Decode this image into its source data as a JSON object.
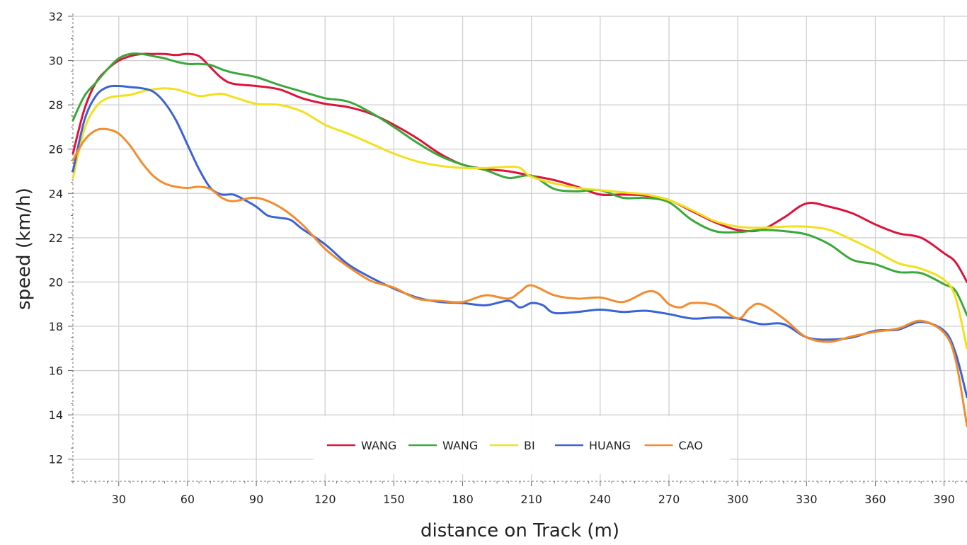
{
  "chart_data": {
    "type": "line",
    "title": "",
    "xlabel": "distance on Track (m)",
    "ylabel": "speed (km/h)",
    "xlim": [
      10,
      400
    ],
    "ylim": [
      11,
      32
    ],
    "x_ticks": [
      30,
      60,
      90,
      120,
      150,
      180,
      210,
      240,
      270,
      300,
      330,
      360,
      390
    ],
    "y_ticks": [
      12,
      14,
      16,
      18,
      20,
      22,
      24,
      26,
      28,
      30,
      32
    ],
    "grid": true,
    "legend_position": "bottom-center",
    "series": [
      {
        "name": "WANG",
        "color": "#dc143c",
        "points": [
          [
            10,
            25.8
          ],
          [
            15,
            27.8
          ],
          [
            20,
            29.0
          ],
          [
            25,
            29.6
          ],
          [
            30,
            30.0
          ],
          [
            35,
            30.2
          ],
          [
            40,
            30.3
          ],
          [
            45,
            30.3
          ],
          [
            50,
            30.3
          ],
          [
            55,
            30.25
          ],
          [
            60,
            30.3
          ],
          [
            65,
            30.2
          ],
          [
            70,
            29.7
          ],
          [
            75,
            29.2
          ],
          [
            80,
            28.95
          ],
          [
            90,
            28.85
          ],
          [
            100,
            28.7
          ],
          [
            110,
            28.3
          ],
          [
            120,
            28.05
          ],
          [
            130,
            27.9
          ],
          [
            140,
            27.6
          ],
          [
            150,
            27.1
          ],
          [
            160,
            26.5
          ],
          [
            170,
            25.8
          ],
          [
            180,
            25.3
          ],
          [
            190,
            25.1
          ],
          [
            200,
            25.0
          ],
          [
            210,
            24.8
          ],
          [
            220,
            24.6
          ],
          [
            230,
            24.3
          ],
          [
            240,
            23.95
          ],
          [
            250,
            23.95
          ],
          [
            260,
            23.9
          ],
          [
            270,
            23.7
          ],
          [
            280,
            23.2
          ],
          [
            290,
            22.7
          ],
          [
            300,
            22.35
          ],
          [
            310,
            22.35
          ],
          [
            320,
            22.9
          ],
          [
            330,
            23.55
          ],
          [
            340,
            23.4
          ],
          [
            350,
            23.1
          ],
          [
            360,
            22.6
          ],
          [
            370,
            22.2
          ],
          [
            380,
            22.0
          ],
          [
            390,
            21.3
          ],
          [
            395,
            20.9
          ],
          [
            400,
            20.0
          ]
        ]
      },
      {
        "name": "WANG",
        "color": "#3aa83a",
        "points": [
          [
            10,
            27.3
          ],
          [
            15,
            28.4
          ],
          [
            20,
            29.0
          ],
          [
            25,
            29.6
          ],
          [
            30,
            30.1
          ],
          [
            35,
            30.3
          ],
          [
            40,
            30.3
          ],
          [
            45,
            30.2
          ],
          [
            50,
            30.1
          ],
          [
            55,
            29.95
          ],
          [
            60,
            29.85
          ],
          [
            65,
            29.85
          ],
          [
            70,
            29.8
          ],
          [
            75,
            29.6
          ],
          [
            80,
            29.45
          ],
          [
            90,
            29.25
          ],
          [
            100,
            28.9
          ],
          [
            110,
            28.6
          ],
          [
            120,
            28.3
          ],
          [
            130,
            28.15
          ],
          [
            140,
            27.65
          ],
          [
            150,
            27.0
          ],
          [
            160,
            26.3
          ],
          [
            170,
            25.7
          ],
          [
            180,
            25.3
          ],
          [
            190,
            25.05
          ],
          [
            200,
            24.7
          ],
          [
            210,
            24.8
          ],
          [
            220,
            24.2
          ],
          [
            230,
            24.1
          ],
          [
            240,
            24.15
          ],
          [
            250,
            23.8
          ],
          [
            260,
            23.8
          ],
          [
            270,
            23.6
          ],
          [
            280,
            22.8
          ],
          [
            290,
            22.3
          ],
          [
            300,
            22.25
          ],
          [
            310,
            22.35
          ],
          [
            320,
            22.3
          ],
          [
            330,
            22.15
          ],
          [
            340,
            21.7
          ],
          [
            350,
            21.0
          ],
          [
            360,
            20.8
          ],
          [
            370,
            20.45
          ],
          [
            380,
            20.4
          ],
          [
            390,
            19.9
          ],
          [
            395,
            19.6
          ],
          [
            400,
            18.5
          ]
        ]
      },
      {
        "name": "BI",
        "color": "#f2e01e",
        "points": [
          [
            10,
            24.7
          ],
          [
            15,
            26.9
          ],
          [
            20,
            27.9
          ],
          [
            25,
            28.3
          ],
          [
            30,
            28.4
          ],
          [
            35,
            28.45
          ],
          [
            40,
            28.6
          ],
          [
            45,
            28.7
          ],
          [
            50,
            28.75
          ],
          [
            55,
            28.7
          ],
          [
            60,
            28.55
          ],
          [
            65,
            28.4
          ],
          [
            70,
            28.45
          ],
          [
            75,
            28.5
          ],
          [
            80,
            28.35
          ],
          [
            90,
            28.05
          ],
          [
            100,
            28.0
          ],
          [
            110,
            27.7
          ],
          [
            120,
            27.1
          ],
          [
            130,
            26.7
          ],
          [
            140,
            26.25
          ],
          [
            150,
            25.8
          ],
          [
            160,
            25.45
          ],
          [
            170,
            25.25
          ],
          [
            180,
            25.15
          ],
          [
            190,
            25.15
          ],
          [
            200,
            25.2
          ],
          [
            205,
            25.15
          ],
          [
            210,
            24.75
          ],
          [
            220,
            24.45
          ],
          [
            230,
            24.25
          ],
          [
            240,
            24.15
          ],
          [
            250,
            24.05
          ],
          [
            260,
            23.95
          ],
          [
            270,
            23.7
          ],
          [
            280,
            23.25
          ],
          [
            290,
            22.75
          ],
          [
            300,
            22.5
          ],
          [
            310,
            22.45
          ],
          [
            320,
            22.5
          ],
          [
            330,
            22.5
          ],
          [
            340,
            22.35
          ],
          [
            350,
            21.9
          ],
          [
            360,
            21.4
          ],
          [
            370,
            20.85
          ],
          [
            380,
            20.6
          ],
          [
            390,
            20.1
          ],
          [
            395,
            19.3
          ],
          [
            400,
            17.0
          ]
        ]
      },
      {
        "name": "HUANG",
        "color": "#3a63d4",
        "points": [
          [
            10,
            25.0
          ],
          [
            15,
            27.3
          ],
          [
            20,
            28.4
          ],
          [
            25,
            28.8
          ],
          [
            30,
            28.85
          ],
          [
            35,
            28.8
          ],
          [
            40,
            28.75
          ],
          [
            45,
            28.6
          ],
          [
            50,
            28.1
          ],
          [
            55,
            27.3
          ],
          [
            60,
            26.2
          ],
          [
            65,
            25.1
          ],
          [
            70,
            24.25
          ],
          [
            75,
            23.95
          ],
          [
            80,
            23.95
          ],
          [
            85,
            23.7
          ],
          [
            90,
            23.4
          ],
          [
            95,
            23.0
          ],
          [
            100,
            22.9
          ],
          [
            105,
            22.8
          ],
          [
            110,
            22.4
          ],
          [
            120,
            21.7
          ],
          [
            130,
            20.8
          ],
          [
            140,
            20.2
          ],
          [
            150,
            19.7
          ],
          [
            160,
            19.3
          ],
          [
            170,
            19.1
          ],
          [
            180,
            19.05
          ],
          [
            190,
            18.95
          ],
          [
            200,
            19.15
          ],
          [
            205,
            18.85
          ],
          [
            210,
            19.05
          ],
          [
            215,
            18.95
          ],
          [
            220,
            18.6
          ],
          [
            230,
            18.65
          ],
          [
            240,
            18.75
          ],
          [
            250,
            18.65
          ],
          [
            260,
            18.7
          ],
          [
            270,
            18.55
          ],
          [
            280,
            18.35
          ],
          [
            290,
            18.4
          ],
          [
            300,
            18.35
          ],
          [
            310,
            18.1
          ],
          [
            320,
            18.1
          ],
          [
            330,
            17.5
          ],
          [
            340,
            17.4
          ],
          [
            350,
            17.5
          ],
          [
            360,
            17.8
          ],
          [
            370,
            17.85
          ],
          [
            380,
            18.2
          ],
          [
            390,
            17.8
          ],
          [
            395,
            16.8
          ],
          [
            400,
            14.8
          ]
        ]
      },
      {
        "name": "CAO",
        "color": "#f28c2e",
        "points": [
          [
            10,
            25.5
          ],
          [
            15,
            26.4
          ],
          [
            20,
            26.85
          ],
          [
            25,
            26.9
          ],
          [
            30,
            26.7
          ],
          [
            35,
            26.15
          ],
          [
            40,
            25.4
          ],
          [
            45,
            24.8
          ],
          [
            50,
            24.45
          ],
          [
            55,
            24.3
          ],
          [
            60,
            24.25
          ],
          [
            65,
            24.3
          ],
          [
            70,
            24.2
          ],
          [
            75,
            23.8
          ],
          [
            80,
            23.65
          ],
          [
            90,
            23.8
          ],
          [
            100,
            23.4
          ],
          [
            110,
            22.6
          ],
          [
            120,
            21.5
          ],
          [
            130,
            20.7
          ],
          [
            140,
            20.05
          ],
          [
            150,
            19.75
          ],
          [
            160,
            19.25
          ],
          [
            170,
            19.15
          ],
          [
            180,
            19.1
          ],
          [
            190,
            19.4
          ],
          [
            200,
            19.25
          ],
          [
            205,
            19.55
          ],
          [
            210,
            19.85
          ],
          [
            220,
            19.4
          ],
          [
            230,
            19.25
          ],
          [
            240,
            19.3
          ],
          [
            250,
            19.1
          ],
          [
            260,
            19.55
          ],
          [
            265,
            19.5
          ],
          [
            270,
            19.0
          ],
          [
            275,
            18.85
          ],
          [
            280,
            19.05
          ],
          [
            290,
            18.95
          ],
          [
            300,
            18.35
          ],
          [
            305,
            18.8
          ],
          [
            310,
            19.0
          ],
          [
            320,
            18.35
          ],
          [
            330,
            17.5
          ],
          [
            340,
            17.3
          ],
          [
            350,
            17.55
          ],
          [
            360,
            17.75
          ],
          [
            370,
            17.9
          ],
          [
            380,
            18.25
          ],
          [
            390,
            17.7
          ],
          [
            395,
            16.5
          ],
          [
            400,
            13.5
          ]
        ]
      }
    ]
  }
}
